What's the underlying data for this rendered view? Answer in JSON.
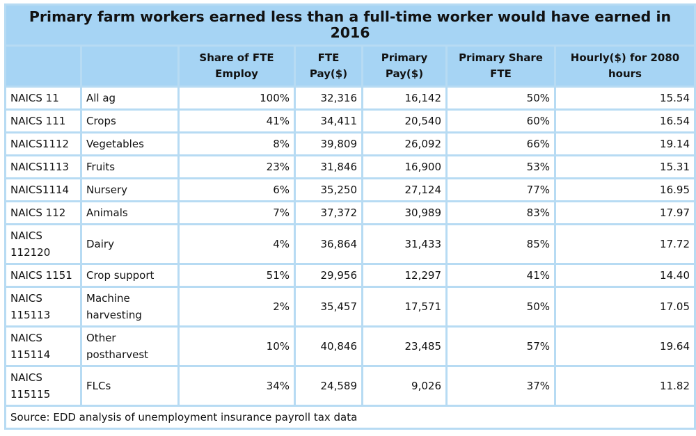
{
  "title": "Primary farm workers earned less than a full-time worker would have earned in 2016",
  "columns": [
    "",
    "",
    "Share of FTE Employ",
    "FTE Pay($)",
    "Primary Pay($)",
    "Primary Share FTE",
    "Hourly($) for 2080 hours"
  ],
  "rows": [
    {
      "code": "NAICS 11",
      "category": "All ag",
      "share": "100%",
      "fte_pay": "32,316",
      "primary_pay": "16,142",
      "primary_share": "50%",
      "hourly": "15.54"
    },
    {
      "code": "NAICS 111",
      "category": "Crops",
      "share": "41%",
      "fte_pay": "34,411",
      "primary_pay": "20,540",
      "primary_share": "60%",
      "hourly": "16.54"
    },
    {
      "code": "NAICS1112",
      "category": "Vegetables",
      "share": "8%",
      "fte_pay": "39,809",
      "primary_pay": "26,092",
      "primary_share": "66%",
      "hourly": "19.14"
    },
    {
      "code": "NAICS1113",
      "category": "Fruits",
      "share": "23%",
      "fte_pay": "31,846",
      "primary_pay": "16,900",
      "primary_share": "53%",
      "hourly": "15.31"
    },
    {
      "code": "NAICS1114",
      "category": "Nursery",
      "share": "6%",
      "fte_pay": "35,250",
      "primary_pay": "27,124",
      "primary_share": "77%",
      "hourly": "16.95"
    },
    {
      "code": "NAICS 112",
      "category": "Animals",
      "share": "7%",
      "fte_pay": "37,372",
      "primary_pay": "30,989",
      "primary_share": "83%",
      "hourly": "17.97"
    },
    {
      "code": "NAICS 112120",
      "category": "Dairy",
      "share": "4%",
      "fte_pay": "36,864",
      "primary_pay": "31,433",
      "primary_share": "85%",
      "hourly": "17.72"
    },
    {
      "code": "NAICS 1151",
      "category": "Crop support",
      "share": "51%",
      "fte_pay": "29,956",
      "primary_pay": "12,297",
      "primary_share": "41%",
      "hourly": "14.40"
    },
    {
      "code": "NAICS 115113",
      "category": "Machine harvesting",
      "share": "2%",
      "fte_pay": "35,457",
      "primary_pay": "17,571",
      "primary_share": "50%",
      "hourly": "17.05"
    },
    {
      "code": "NAICS 115114",
      "category": "Other postharvest",
      "share": "10%",
      "fte_pay": "40,846",
      "primary_pay": "23,485",
      "primary_share": "57%",
      "hourly": "19.64"
    },
    {
      "code": "NAICS 115115",
      "category": "FLCs",
      "share": "34%",
      "fte_pay": "24,589",
      "primary_pay": "9,026",
      "primary_share": "37%",
      "hourly": "11.82"
    }
  ],
  "source": "Source: EDD analysis of unemployment insurance payroll tax data",
  "colors": {
    "header_bg": "#a6d4f4",
    "grid": "#b7dbf3",
    "cell_bg": "#ffffff"
  }
}
